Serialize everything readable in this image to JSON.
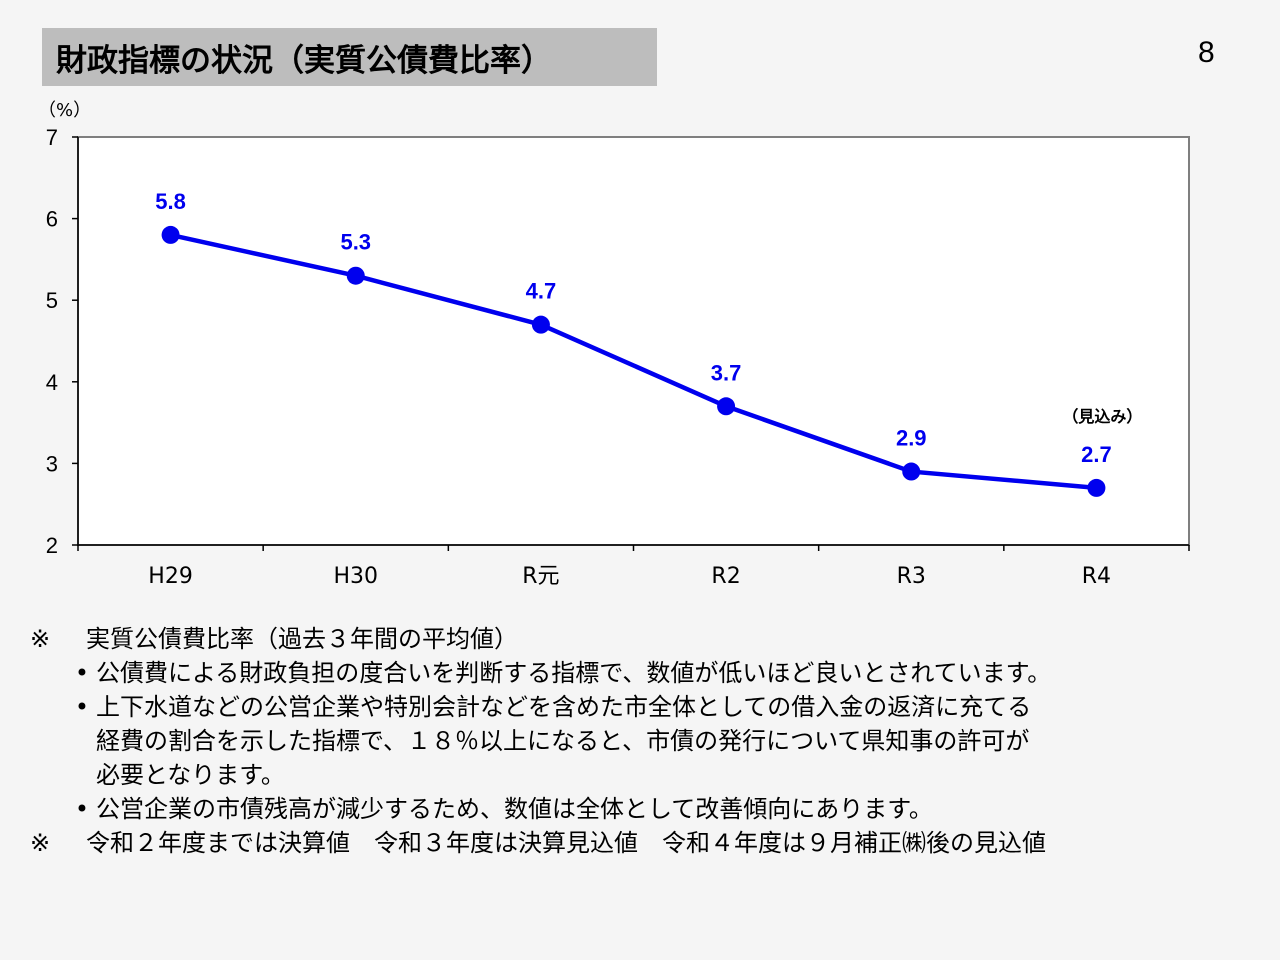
{
  "slide": {
    "title": "財政指標の状況（実質公債費比率）",
    "page_number": "8"
  },
  "chart_data": {
    "type": "line",
    "ylabel": "（%）",
    "ylim": [
      2,
      7
    ],
    "yticks": [
      "2",
      "3",
      "4",
      "5",
      "6",
      "7"
    ],
    "categories": [
      "H29",
      "H30",
      "R元",
      "R2",
      "R3",
      "R4"
    ],
    "series": [
      {
        "values": [
          5.8,
          5.3,
          4.7,
          3.7,
          2.9,
          2.7
        ],
        "labels": [
          "5.8",
          "5.3",
          "4.7",
          "3.7",
          "2.9",
          "2.7"
        ],
        "color": "#0000ee"
      }
    ],
    "annotation": "（見込み）",
    "grid": false,
    "legend": "none"
  },
  "notes": {
    "mark1": "※",
    "heading": "実質公債費比率（過去３年間の平均値）",
    "bullet_symbol": "•",
    "bullet1": "公債費による財政負担の度合いを判断する指標で、数値が低いほど良いとされています。",
    "bullet2_lines": [
      "上下水道などの公営企業や特別会計などを含めた市全体としての借入金の返済に充てる",
      "経費の割合を示した指標で、１８％以上になると、市債の発行について県知事の許可が",
      "必要となります。"
    ],
    "bullet3": "公営企業の市債残高が減少するため、数値は全体として改善傾向にあります。",
    "mark2": "※",
    "footnote": "令和２年度までは決算値　令和３年度は決算見込値　令和４年度は９月補正㈱後の見込値"
  }
}
